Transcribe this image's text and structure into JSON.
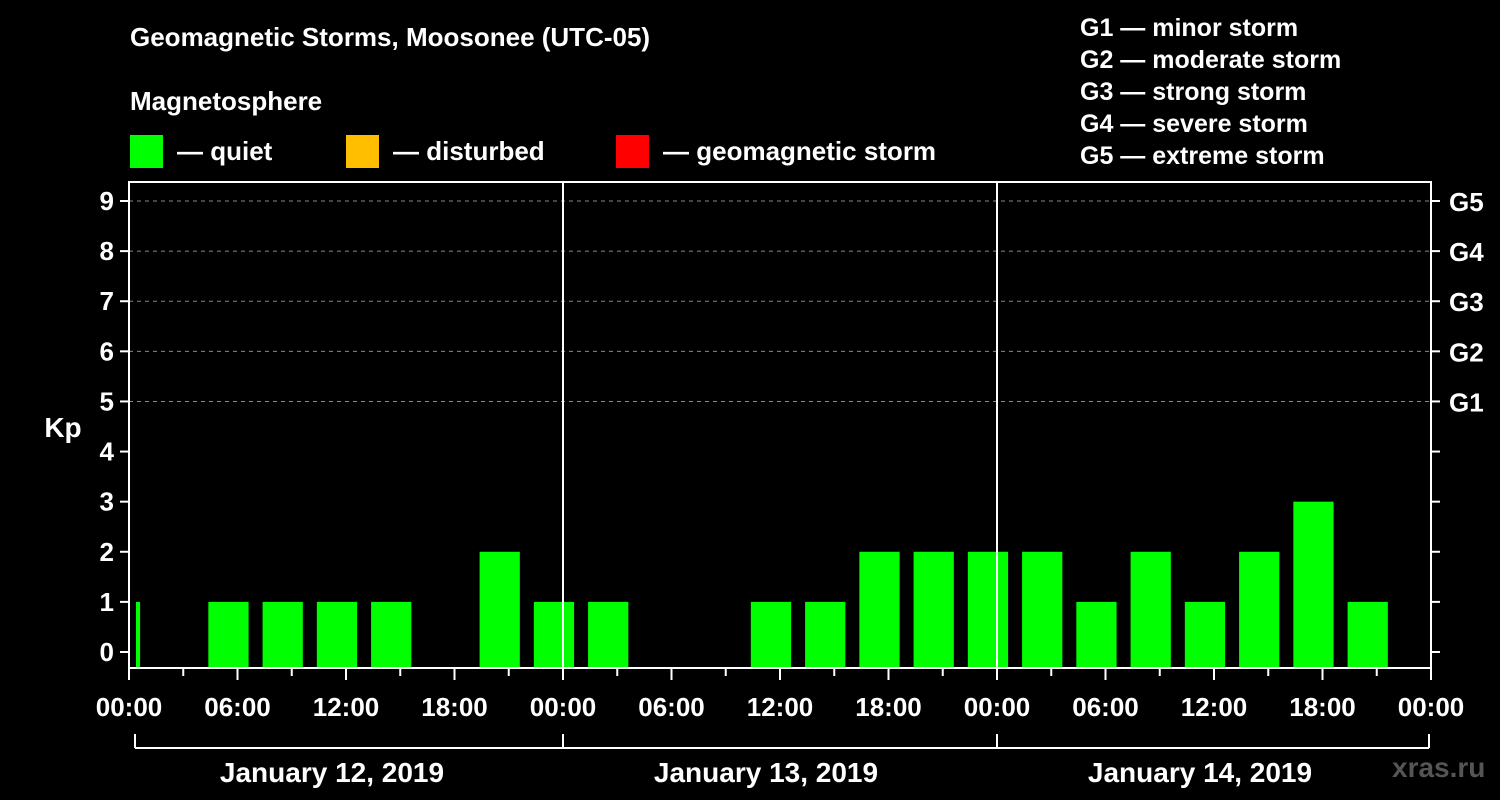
{
  "header": {
    "title": "Geomagnetic Storms, Moosonee (UTC-05)",
    "section": "Magnetosphere"
  },
  "legend": [
    {
      "color": "#00ff00",
      "label": "— quiet"
    },
    {
      "color": "#ffbf00",
      "label": "— disturbed"
    },
    {
      "color": "#ff0000",
      "label": "— geomagnetic storm"
    }
  ],
  "g_scale": [
    "G1 — minor storm",
    "G2 — moderate storm",
    "G3 — strong storm",
    "G4 — severe storm",
    "G5 — extreme storm"
  ],
  "watermark": "xras.ru",
  "chart_data": {
    "type": "bar",
    "ylabel": "Kp",
    "ylim": [
      0,
      9
    ],
    "y_ticks": [
      "0",
      "1",
      "2",
      "3",
      "4",
      "5",
      "6",
      "7",
      "8",
      "9"
    ],
    "right_axis_labels": [
      {
        "kp": 5,
        "label": "G1"
      },
      {
        "kp": 6,
        "label": "G2"
      },
      {
        "kp": 7,
        "label": "G3"
      },
      {
        "kp": 8,
        "label": "G4"
      },
      {
        "kp": 9,
        "label": "G5"
      }
    ],
    "grid": "dashed horizontal at 5-9",
    "x_tick_labels": [
      "00:00",
      "06:00",
      "12:00",
      "18:00",
      "00:00",
      "06:00",
      "12:00",
      "18:00",
      "00:00",
      "06:00",
      "12:00",
      "18:00",
      "00:00"
    ],
    "days": [
      "January 12, 2019",
      "January 13, 2019",
      "January 14, 2019"
    ],
    "bar_hours": 3,
    "start_hour": 1,
    "values": [
      1,
      0,
      1,
      1,
      1,
      1,
      0,
      2,
      1,
      1,
      0,
      0,
      1,
      1,
      2,
      2,
      2,
      2,
      1,
      2,
      1,
      2,
      3,
      1
    ],
    "colors": {
      "quiet": "#00ff00",
      "disturbed": "#ffbf00",
      "storm": "#ff0000"
    }
  }
}
